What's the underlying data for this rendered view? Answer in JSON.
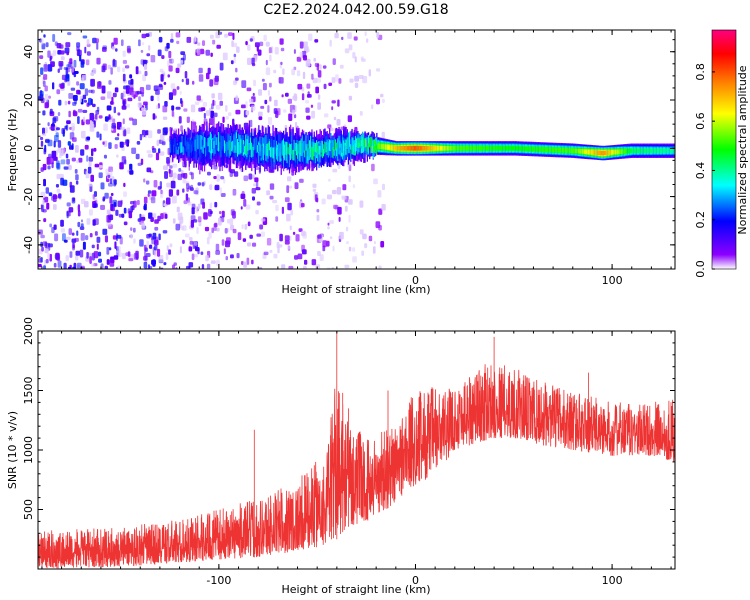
{
  "title": "C2E2.2024.042.00.59.G18",
  "chart_data": [
    {
      "type": "heatmap",
      "xlabel": "Height of straight line (km)",
      "ylabel": "Frequency (Hz)",
      "xlim": [
        -192,
        132
      ],
      "ylim": [
        -50,
        49
      ],
      "x_ticks": [
        -100,
        0,
        100
      ],
      "x_tick_labels": [
        "-100",
        "0",
        "100"
      ],
      "y_ticks": [
        -40,
        -20,
        0,
        20,
        40
      ],
      "y_tick_labels": [
        "-40",
        "-20",
        "0",
        "20",
        "40"
      ],
      "colorbar": {
        "label": "Normalized spectral amplitude",
        "range": [
          0,
          0.97
        ],
        "ticks": [
          0.0,
          0.2,
          0.4,
          0.6,
          0.8
        ],
        "tick_labels": [
          "0.0",
          "0.2",
          "0.4",
          "0.6",
          "0.8"
        ],
        "colormap": "gist_rainbow_reversed",
        "colors": [
          "#ffffff",
          "#8c00ff",
          "#0000ff",
          "#00ffff",
          "#00ff00",
          "#ffff00",
          "#ff8000",
          "#ff0000",
          "#ff0080"
        ]
      },
      "band": {
        "x": [
          -125,
          -110,
          -90,
          -70,
          -50,
          -35,
          -20,
          -10,
          0,
          20,
          50,
          80,
          95,
          110,
          132
        ],
        "center_hz": [
          1,
          1,
          1,
          -1,
          -1,
          1,
          1,
          0,
          0,
          0,
          0,
          -1,
          -2,
          -1,
          -1
        ],
        "halfwidth_hz": [
          3,
          5,
          5,
          5,
          4,
          4,
          2.5,
          2,
          2,
          2,
          2,
          2,
          2,
          2,
          2
        ],
        "peak_amplitude": [
          0.3,
          0.35,
          0.4,
          0.4,
          0.45,
          0.45,
          0.6,
          0.8,
          0.92,
          0.6,
          0.55,
          0.6,
          0.85,
          0.5,
          0.45
        ]
      }
    },
    {
      "type": "line",
      "xlabel": "Height of straight line (km)",
      "ylabel": "SNR (10 * v/v)",
      "xlim": [
        -192,
        132
      ],
      "ylim": [
        0,
        2000
      ],
      "x_ticks": [
        -100,
        0,
        100
      ],
      "x_tick_labels": [
        "-100",
        "0",
        "100"
      ],
      "y_ticks": [
        500,
        1000,
        1500,
        2000
      ],
      "y_tick_labels": [
        "500",
        "1000",
        "1500",
        "2000"
      ],
      "color": "#ee3333",
      "envelope": {
        "x": [
          -192,
          -150,
          -120,
          -100,
          -80,
          -60,
          -45,
          -40,
          -35,
          -25,
          -15,
          -10,
          -5,
          0,
          10,
          15,
          20,
          30,
          40,
          50,
          60,
          80,
          100,
          120,
          132
        ],
        "low": [
          0,
          20,
          50,
          80,
          100,
          150,
          200,
          250,
          350,
          400,
          500,
          550,
          650,
          700,
          800,
          900,
          1000,
          1050,
          1100,
          1100,
          1050,
          1000,
          950,
          950,
          900
        ],
        "high": [
          320,
          350,
          420,
          500,
          600,
          750,
          1000,
          1700,
          1300,
          1100,
          1200,
          1250,
          1400,
          1500,
          1550,
          1500,
          1550,
          1700,
          1750,
          1700,
          1600,
          1500,
          1400,
          1400,
          1450
        ]
      }
    }
  ]
}
